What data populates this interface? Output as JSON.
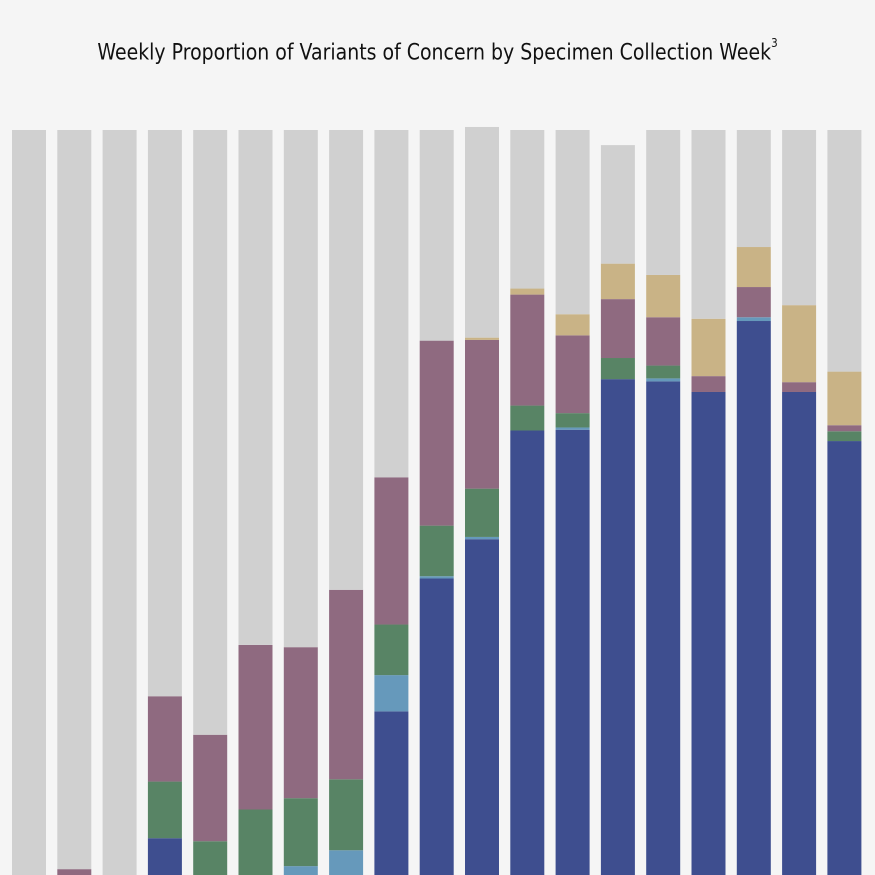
{
  "chart_data": {
    "type": "bar",
    "stacked": true,
    "title": "Weekly Proportion of Variants of Concern by Specimen Collection Week",
    "title_superscript": "3",
    "xlabel": "",
    "ylabel": "",
    "ylim": [
      0,
      100
    ],
    "grid": false,
    "legend": "none",
    "bar_count": 19,
    "series": [
      {
        "color": "#3e4e8f",
        "values": [
          0,
          0,
          0,
          6.2,
          1.3,
          0,
          0,
          0.3,
          23.0,
          40.6,
          45.8,
          60.2,
          60.3,
          67.0,
          66.7,
          65.3,
          74.7,
          65.3,
          58.8
        ]
      },
      {
        "color": "#6699bb",
        "values": [
          0,
          0,
          0,
          0,
          0,
          0,
          2.5,
          4.3,
          4.8,
          0.3,
          0.3,
          0,
          0.3,
          0,
          0.4,
          0,
          0.5,
          0,
          0
        ]
      },
      {
        "color": "#588465",
        "values": [
          0,
          0,
          0,
          7.5,
          4.5,
          10.0,
          9.0,
          9.4,
          6.7,
          6.7,
          6.4,
          3.3,
          1.9,
          2.8,
          1.7,
          0,
          0,
          0,
          1.3
        ]
      },
      {
        "color": "#8f6a80",
        "values": [
          0,
          2.1,
          0,
          11.3,
          14.1,
          21.8,
          20.0,
          25.1,
          19.5,
          24.5,
          19.7,
          14.7,
          10.3,
          7.8,
          6.4,
          2.1,
          4.0,
          1.3,
          0.8
        ]
      },
      {
        "color": "#c9b386",
        "values": [
          0,
          0,
          0,
          0,
          0,
          0,
          0,
          0,
          0,
          0,
          0.3,
          0.8,
          2.8,
          4.7,
          5.6,
          7.6,
          5.3,
          10.2,
          7.1
        ]
      },
      {
        "color": "#d0d0d0",
        "values": [
          100,
          97.9,
          100,
          75.0,
          80.1,
          68.2,
          68.5,
          60.9,
          46.0,
          27.9,
          27.9,
          21.0,
          24.4,
          15.7,
          19.2,
          25.0,
          15.5,
          23.2,
          32.0
        ]
      }
    ]
  }
}
